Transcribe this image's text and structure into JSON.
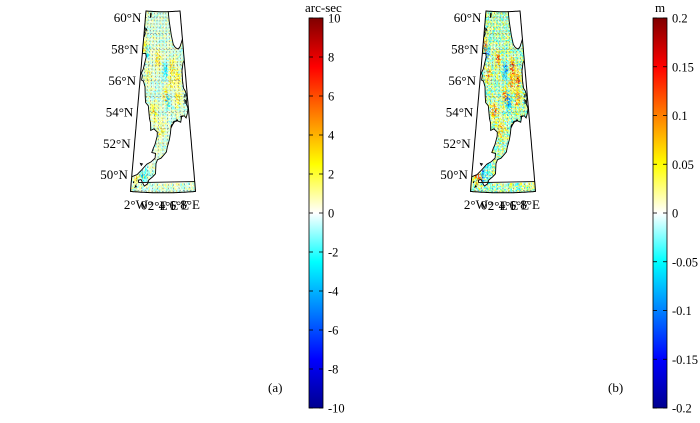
{
  "panels": [
    {
      "id": "a",
      "label": "(a)",
      "colorbar": {
        "unit": "arc-sec",
        "ticks": [
          "10",
          "8",
          "6",
          "4",
          "2",
          "0",
          "-2",
          "-4",
          "-6",
          "-8",
          "-10"
        ]
      },
      "intensity": 0.55
    },
    {
      "id": "b",
      "label": "(b)",
      "colorbar": {
        "unit": "m",
        "ticks": [
          "0.2",
          "0.15",
          "0.1",
          "0.05",
          "0",
          "-0.05",
          "-0.1",
          "-0.15",
          "-0.2"
        ]
      },
      "intensity": 1.0
    }
  ],
  "lat_labels": [
    "60°N",
    "58°N",
    "56°N",
    "54°N",
    "52°N",
    "50°N"
  ],
  "lon_labels": [
    "2°W",
    "0°",
    "2°E",
    "4°E",
    "6°E",
    "8°E"
  ],
  "colormap": {
    "stops": [
      "#00008f",
      "#0000ff",
      "#0080ff",
      "#00ffff",
      "#ffffff",
      "#ffff00",
      "#ff8000",
      "#ff0000",
      "#800000"
    ]
  }
}
